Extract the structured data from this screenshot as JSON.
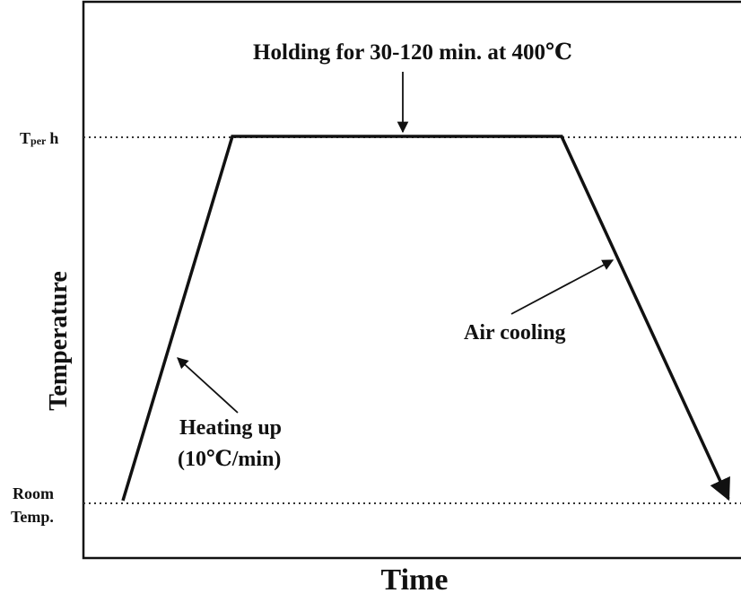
{
  "title": "Holding for 30-120 min. at 400℃",
  "y_axis": {
    "label": "Temperature",
    "top_level": {
      "symbol": "T",
      "subscript": "per",
      "suffix": "h"
    },
    "bottom_level": [
      "Room",
      "Temp."
    ]
  },
  "x_axis": {
    "label": "Time"
  },
  "annotations": {
    "heating": [
      "Heating up",
      "(10℃/min)"
    ],
    "cooling": "Air cooling"
  }
}
